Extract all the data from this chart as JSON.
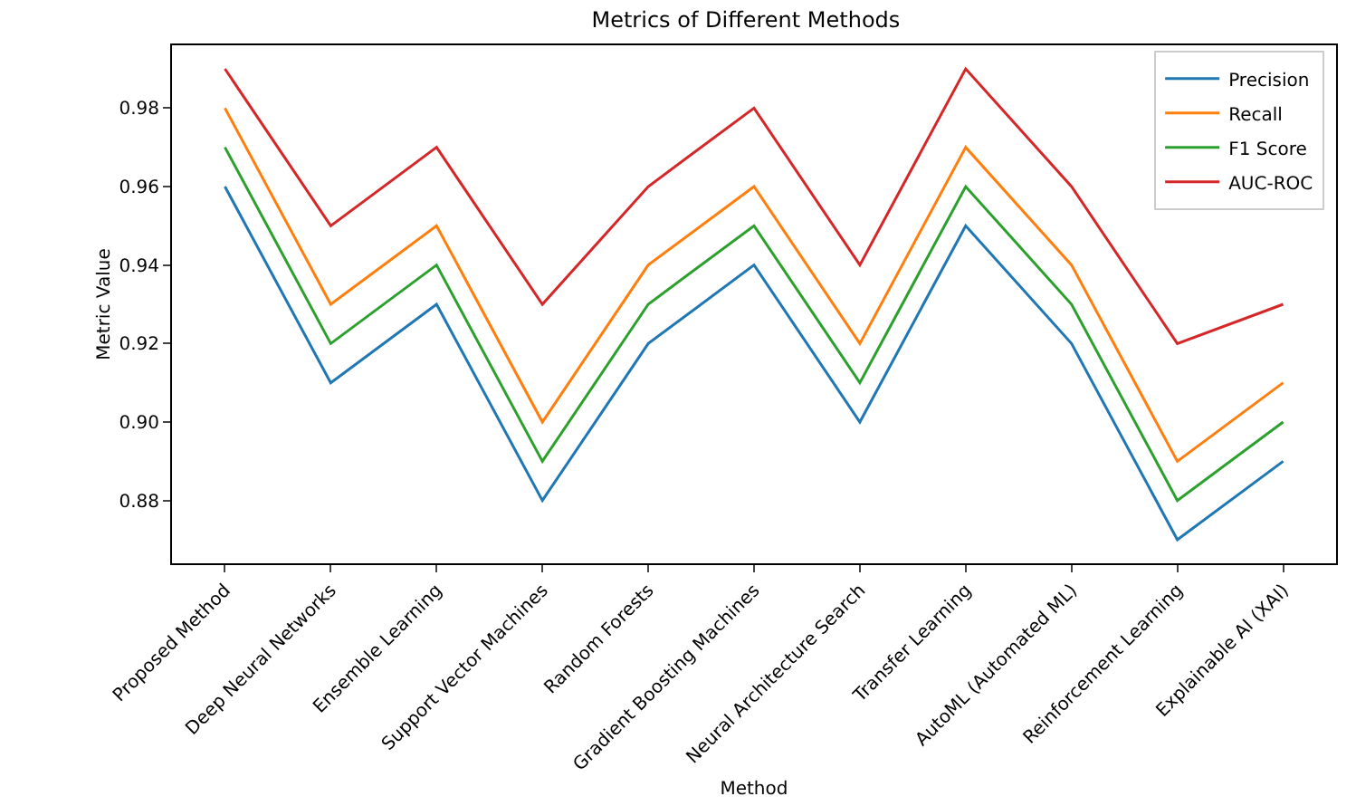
{
  "chart_data": {
    "type": "line",
    "title": "Metrics of Different Methods",
    "xlabel": "Method",
    "ylabel": "Metric Value",
    "categories": [
      "Proposed Method",
      "Deep Neural Networks",
      "Ensemble Learning",
      "Support Vector Machines",
      "Random Forests",
      "Gradient Boosting Machines",
      "Neural Architecture Search",
      "Transfer Learning",
      "AutoML (Automated ML)",
      "Reinforcement Learning",
      "Explainable AI (XAI)"
    ],
    "series": [
      {
        "name": "Precision",
        "color": "#1f77b4",
        "values": [
          0.96,
          0.91,
          0.93,
          0.88,
          0.92,
          0.94,
          0.9,
          0.95,
          0.92,
          0.87,
          0.89
        ]
      },
      {
        "name": "Recall",
        "color": "#ff7f0e",
        "values": [
          0.98,
          0.93,
          0.95,
          0.9,
          0.94,
          0.96,
          0.92,
          0.97,
          0.94,
          0.89,
          0.91
        ]
      },
      {
        "name": "F1 Score",
        "color": "#2ca02c",
        "values": [
          0.97,
          0.92,
          0.94,
          0.89,
          0.93,
          0.95,
          0.91,
          0.96,
          0.93,
          0.88,
          0.9
        ]
      },
      {
        "name": "AUC-ROC",
        "color": "#d62728",
        "values": [
          0.99,
          0.95,
          0.97,
          0.93,
          0.96,
          0.98,
          0.94,
          0.99,
          0.96,
          0.92,
          0.93
        ]
      }
    ],
    "ylim": [
      0.864,
      0.996
    ],
    "yticks": [
      {
        "value": 0.88,
        "label": "0.88"
      },
      {
        "value": 0.9,
        "label": "0.90"
      },
      {
        "value": 0.92,
        "label": "0.92"
      },
      {
        "value": 0.94,
        "label": "0.94"
      },
      {
        "value": 0.96,
        "label": "0.96"
      },
      {
        "value": 0.98,
        "label": "0.98"
      }
    ],
    "grid": false,
    "legend": "top right",
    "marker": "none",
    "line_style": "solid"
  }
}
